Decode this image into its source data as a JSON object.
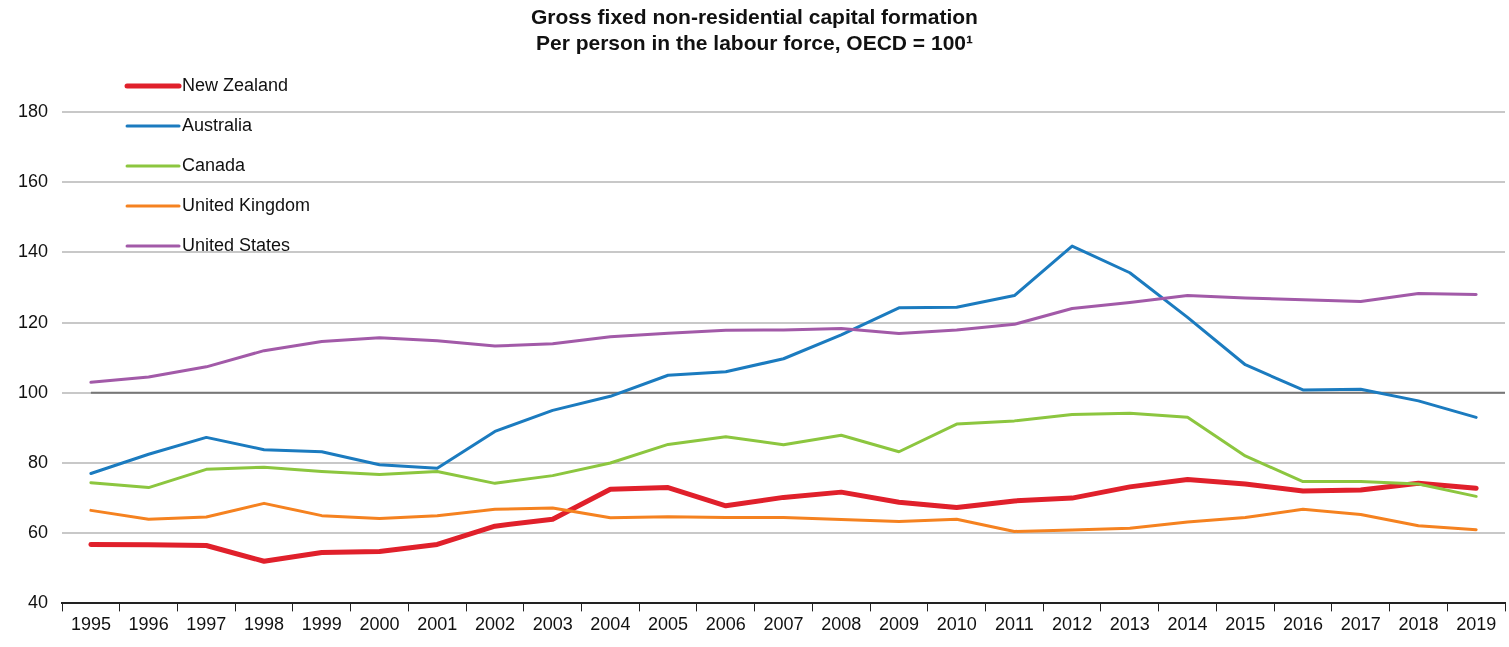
{
  "chart_data": {
    "type": "line",
    "title": "Gross fixed non-residential capital formation",
    "subtitle": "Per person in the labour force, OECD = 100¹",
    "categories": [
      "1995",
      "1996",
      "1997",
      "1998",
      "1999",
      "2000",
      "2001",
      "2002",
      "2003",
      "2004",
      "2005",
      "2006",
      "2007",
      "2008",
      "2009",
      "2010",
      "2011",
      "2012",
      "2013",
      "2014",
      "2015",
      "2016",
      "2017",
      "2018",
      "2019"
    ],
    "series": [
      {
        "name": "New Zealand",
        "color": "#e0202b",
        "values": [
          56.8,
          56.7,
          56.5,
          52,
          54.5,
          54.8,
          56.8,
          62,
          64,
          72.5,
          73,
          67.8,
          70.2,
          71.7,
          68.8,
          67.3,
          69.2,
          70,
          73.2,
          75.3,
          74,
          72,
          72.3,
          74.2,
          72.8
        ]
      },
      {
        "name": "Australia",
        "color": "#1b7bbf",
        "values": [
          77,
          82.5,
          87.3,
          83.8,
          83.2,
          79.5,
          78.5,
          89,
          95,
          99,
          105,
          106,
          109.7,
          116.5,
          124.2,
          124.4,
          127.7,
          141.8,
          134.2,
          121.5,
          108,
          100.8,
          101,
          97.7,
          93
        ]
      },
      {
        "name": "Canada",
        "color": "#8cc63f",
        "values": [
          74.4,
          73,
          78.2,
          78.8,
          77.6,
          76.7,
          77.6,
          74.2,
          76.4,
          80,
          85.3,
          87.5,
          85.2,
          87.9,
          83.2,
          91.1,
          92,
          93.8,
          94.2,
          93,
          82,
          74.7,
          74.7,
          74,
          70.5
        ]
      },
      {
        "name": "United Kingdom",
        "color": "#f58220",
        "values": [
          66.5,
          64,
          64.6,
          68.5,
          65,
          64.2,
          65,
          66.8,
          67.2,
          64.4,
          64.7,
          64.5,
          64.5,
          63.9,
          63.3,
          64,
          60.5,
          60.9,
          61.4,
          63.2,
          64.5,
          66.8,
          65.3,
          62.1,
          61
        ]
      },
      {
        "name": "United States",
        "color": "#a25aa8",
        "values": [
          103,
          104.5,
          107.4,
          112,
          114.6,
          115.7,
          114.8,
          113.3,
          114,
          116,
          117,
          117.8,
          117.9,
          118.3,
          116.9,
          117.9,
          119.5,
          124,
          125.7,
          127.7,
          127,
          126.5,
          126,
          128.3,
          128
        ]
      }
    ],
    "ylim": [
      40,
      180
    ],
    "yticks": [
      40,
      60,
      80,
      100,
      120,
      140,
      160,
      180
    ],
    "grid": "y",
    "legend": "top left",
    "marker": "none",
    "ref_lines": [
      {
        "axis": "y",
        "value": 100,
        "color": "#777777"
      }
    ]
  }
}
